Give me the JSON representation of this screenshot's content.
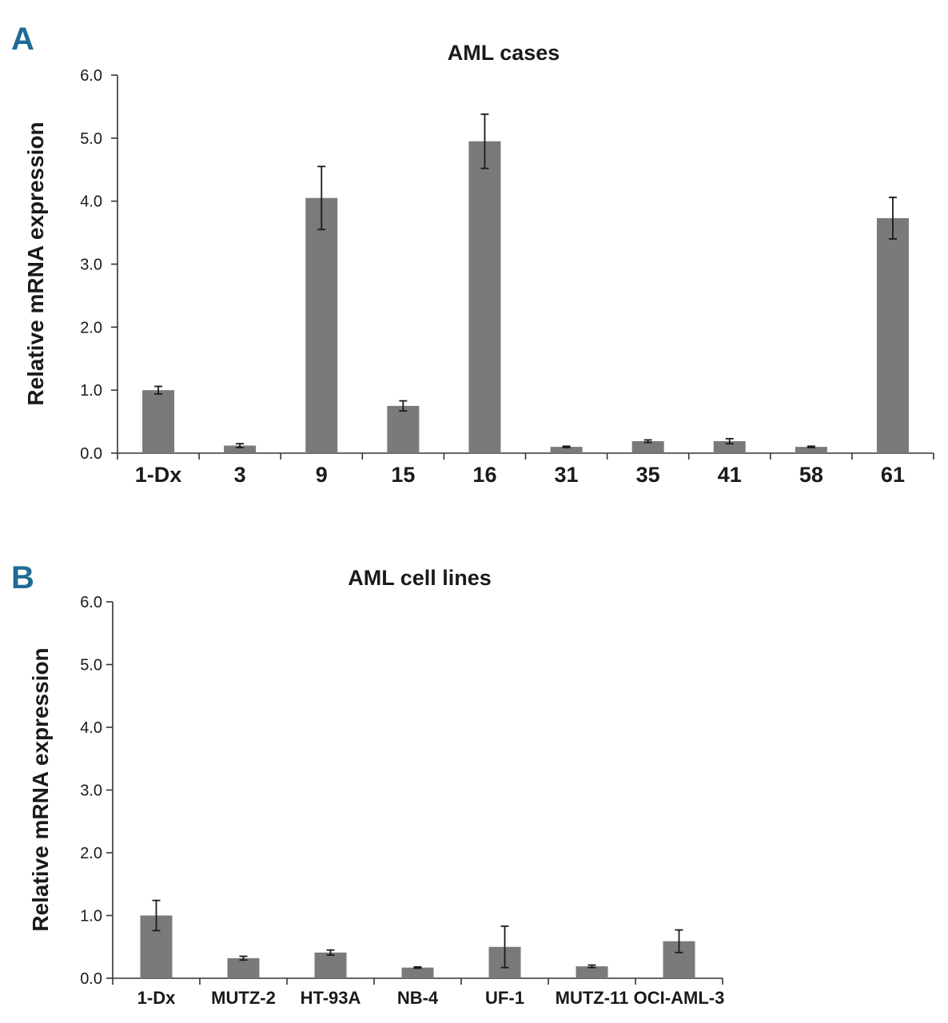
{
  "panels": {
    "a_letter": "A",
    "b_letter": "B"
  },
  "colors": {
    "bar": "#7a7a7a",
    "panel_letter": "#1f6b95"
  },
  "chart_data": [
    {
      "type": "bar",
      "title": "AML cases",
      "xlabel": "",
      "ylabel": "Relative mRNA expression",
      "ylim": [
        0,
        6.0
      ],
      "yticks": [
        "0.0",
        "1.0",
        "2.0",
        "3.0",
        "4.0",
        "5.0",
        "6.0"
      ],
      "categories": [
        "1-Dx",
        "3",
        "9",
        "15",
        "16",
        "31",
        "35",
        "41",
        "58",
        "61"
      ],
      "values": [
        1.0,
        0.12,
        4.05,
        0.75,
        4.95,
        0.1,
        0.19,
        0.19,
        0.1,
        3.73
      ],
      "errors": [
        0.06,
        0.03,
        0.5,
        0.08,
        0.43,
        0.01,
        0.02,
        0.04,
        0.01,
        0.33
      ],
      "grid": false,
      "legend": "none"
    },
    {
      "type": "bar",
      "title": "AML cell lines",
      "xlabel": "",
      "ylabel": "Relative mRNA expression",
      "ylim": [
        0,
        6.0
      ],
      "yticks": [
        "0.0",
        "1.0",
        "2.0",
        "3.0",
        "4.0",
        "5.0",
        "6.0"
      ],
      "categories": [
        "1-Dx",
        "MUTZ-2",
        "HT-93A",
        "NB-4",
        "UF-1",
        "MUTZ-11",
        "OCI-AML-3"
      ],
      "values": [
        1.0,
        0.32,
        0.41,
        0.17,
        0.5,
        0.19,
        0.59
      ],
      "errors": [
        0.24,
        0.03,
        0.04,
        0.01,
        0.33,
        0.02,
        0.18
      ],
      "grid": false,
      "legend": "none"
    }
  ]
}
